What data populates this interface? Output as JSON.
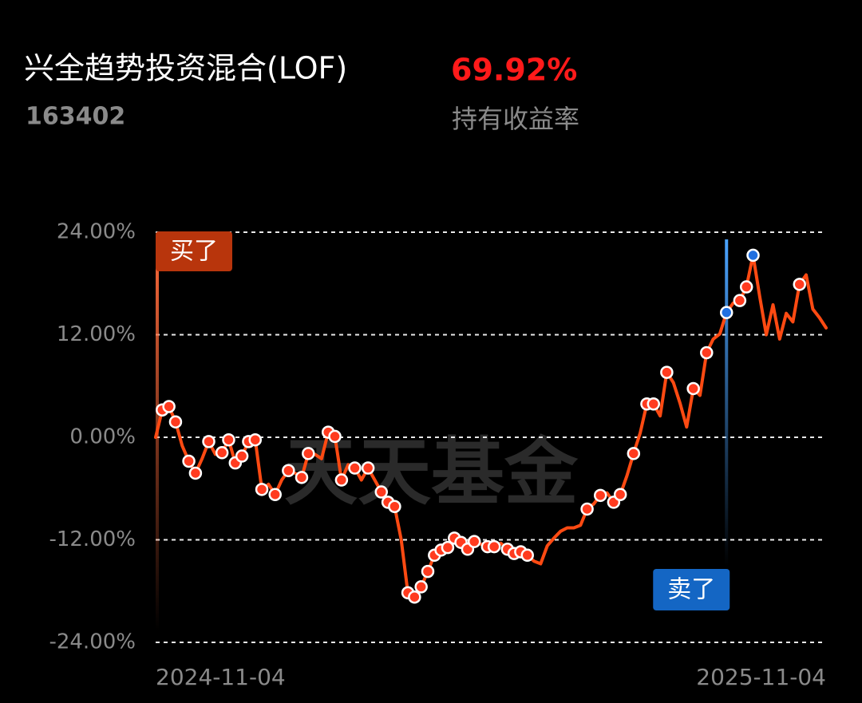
{
  "header": {
    "title": "兴全趋势投资混合(LOF)",
    "code": "163402",
    "return_value": "69.92%",
    "return_label": "持有收益率"
  },
  "chart_data": {
    "type": "line",
    "watermark": "天天基金",
    "buy_label": "买了",
    "sell_label": "卖了",
    "ylim": [
      -24,
      24
    ],
    "yticks": [
      {
        "value": -24,
        "label": "-24.00%"
      },
      {
        "value": -12,
        "label": "-12.00%"
      },
      {
        "value": 0,
        "label": "0.00%"
      },
      {
        "value": 12,
        "label": "12.00%"
      },
      {
        "value": 24,
        "label": "24.00%"
      }
    ],
    "grid": true,
    "categories": [
      "2024-11-04",
      null,
      null,
      null,
      null,
      null,
      null,
      null,
      null,
      null,
      null,
      null,
      null,
      null,
      null,
      null,
      null,
      null,
      null,
      null,
      null,
      null,
      null,
      null,
      null,
      null,
      null,
      null,
      null,
      null,
      null,
      null,
      null,
      null,
      null,
      null,
      null,
      null,
      null,
      null,
      null,
      null,
      null,
      null,
      null,
      null,
      null,
      null,
      null,
      null,
      null,
      null,
      null,
      null,
      null,
      null,
      null,
      null,
      null,
      null,
      null,
      null,
      null,
      null,
      null,
      null,
      null,
      null,
      null,
      null,
      null,
      null,
      null,
      null,
      null,
      null,
      null,
      null,
      null,
      null,
      null,
      null,
      null,
      null,
      null,
      null,
      null,
      null,
      null,
      null,
      null,
      null,
      null,
      null,
      null,
      null,
      null,
      null,
      null,
      null,
      null,
      "2025-11-04"
    ],
    "series": [
      {
        "color": "#ff4a12",
        "style": "line",
        "values": [
          0.0,
          3.2,
          3.6,
          1.8,
          -1.0,
          -2.8,
          -4.2,
          -2.5,
          -0.5,
          -2.0,
          -1.8,
          -0.3,
          -3.0,
          -2.2,
          -0.5,
          -0.3,
          -6.1,
          -5.5,
          -6.7,
          -5.0,
          -3.9,
          -4.2,
          -4.7,
          -1.9,
          -2.0,
          -2.5,
          0.6,
          0.1,
          -5.0,
          -3.2,
          -3.6,
          -5.0,
          -3.6,
          -5.0,
          -6.4,
          -7.6,
          -8.1,
          -12.0,
          -18.2,
          -18.7,
          -17.5,
          -15.7,
          -13.8,
          -13.2,
          -12.9,
          -11.8,
          -12.3,
          -13.1,
          -12.2,
          -12.5,
          -12.8,
          -12.8,
          -12.4,
          -13.1,
          -13.6,
          -13.4,
          -13.8,
          -14.5,
          -14.8,
          -12.7,
          -11.8,
          -11.0,
          -10.6,
          -10.6,
          -10.3,
          -8.4,
          -7.8,
          -6.8,
          -6.5,
          -7.6,
          -6.7,
          -4.5,
          -1.9,
          0.5,
          3.9,
          3.9,
          2.5,
          7.6,
          6.4,
          4.0,
          1.2,
          5.7,
          4.9,
          9.9,
          11.5,
          12.1,
          14.6,
          15.7,
          16.0,
          17.6,
          21.3,
          16.5,
          12.0,
          15.5,
          11.5,
          14.5,
          13.5,
          17.9,
          19.0,
          15.0,
          14.0,
          12.8
        ]
      },
      {
        "color": "#ff3b1f",
        "style": "dots",
        "values": [
          null,
          3.2,
          3.6,
          1.8,
          null,
          -2.8,
          -4.2,
          null,
          -0.5,
          null,
          -1.8,
          -0.3,
          -3.0,
          -2.2,
          -0.5,
          -0.3,
          -6.1,
          null,
          -6.7,
          null,
          -3.9,
          null,
          -4.7,
          -1.9,
          null,
          null,
          0.6,
          0.1,
          -5.0,
          null,
          -3.6,
          null,
          -3.6,
          null,
          -6.4,
          -7.6,
          -8.1,
          null,
          -18.2,
          -18.7,
          -17.5,
          -15.7,
          -13.8,
          -13.2,
          -12.9,
          -11.8,
          -12.3,
          -13.1,
          -12.2,
          null,
          -12.8,
          -12.8,
          null,
          -13.1,
          -13.6,
          -13.4,
          -13.8,
          null,
          null,
          null,
          null,
          null,
          null,
          null,
          null,
          -8.4,
          null,
          -6.8,
          null,
          -7.6,
          -6.7,
          null,
          -1.9,
          null,
          3.9,
          3.9,
          null,
          7.6,
          null,
          null,
          null,
          5.7,
          null,
          9.9,
          null,
          null,
          null,
          null,
          16.0,
          17.6,
          null,
          null,
          null,
          null,
          null,
          null,
          null,
          17.9,
          null,
          null,
          null,
          null
        ]
      },
      {
        "color": "#1f6fe0",
        "style": "dots",
        "values": [
          null,
          null,
          null,
          null,
          null,
          null,
          null,
          null,
          null,
          null,
          null,
          null,
          null,
          null,
          null,
          null,
          null,
          null,
          null,
          null,
          null,
          null,
          null,
          null,
          null,
          null,
          null,
          null,
          null,
          null,
          null,
          null,
          null,
          null,
          null,
          null,
          null,
          null,
          null,
          null,
          null,
          null,
          null,
          null,
          null,
          null,
          null,
          null,
          null,
          null,
          null,
          null,
          null,
          null,
          null,
          null,
          null,
          null,
          null,
          null,
          null,
          null,
          null,
          null,
          null,
          null,
          null,
          null,
          null,
          null,
          null,
          null,
          null,
          null,
          null,
          null,
          null,
          null,
          null,
          null,
          null,
          null,
          null,
          null,
          null,
          null,
          14.6,
          null,
          null,
          null,
          21.3,
          null,
          null,
          null,
          null,
          null,
          null,
          null,
          null,
          null,
          null,
          null
        ]
      }
    ]
  }
}
